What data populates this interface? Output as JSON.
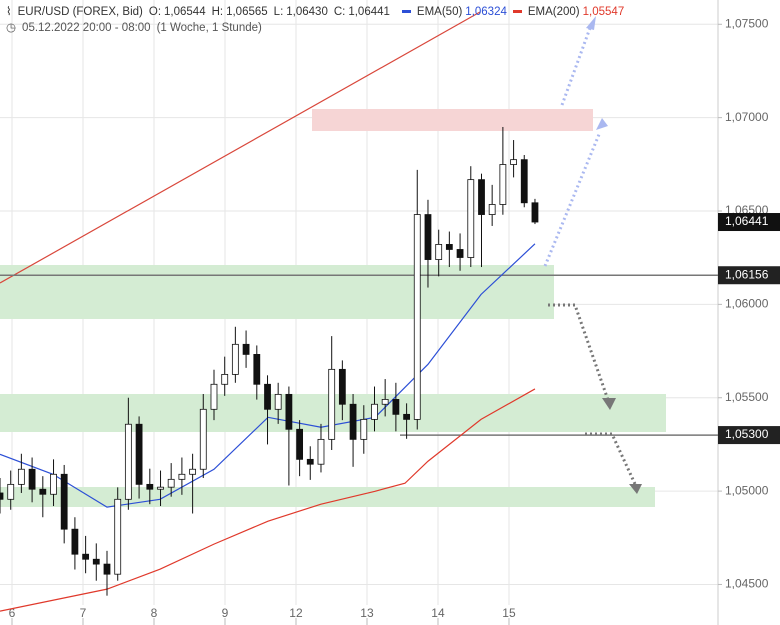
{
  "chart_data": {
    "type": "candlestick",
    "header": {
      "symbol": "EUR/USD (FOREX, Bid)",
      "ohlc": [
        {
          "label": "O:",
          "value": "1,06544"
        },
        {
          "label": "H:",
          "value": "1,06565"
        },
        {
          "label": "L:",
          "value": "1,06430"
        },
        {
          "label": "C:",
          "value": "1,06441"
        }
      ],
      "range": "05.12.2022 20:00 - 08:00",
      "period": "(1 Woche, 1 Stunde)"
    },
    "xlim": [
      -0.169,
      9.944
    ],
    "xticks": [
      {
        "value": 0,
        "label": "6"
      },
      {
        "value": 1,
        "label": "7"
      },
      {
        "value": 2,
        "label": "8"
      },
      {
        "value": 3,
        "label": "9"
      },
      {
        "value": 4,
        "label": "12"
      },
      {
        "value": 5,
        "label": "13"
      },
      {
        "value": 6,
        "label": "14"
      },
      {
        "value": 7,
        "label": "15"
      }
    ],
    "ylim": [
      1.0439,
      1.0763
    ],
    "yticks": [
      {
        "value": 1.045,
        "label": "1,04500"
      },
      {
        "value": 1.05,
        "label": "1,05000"
      },
      {
        "value": 1.055,
        "label": "1,05500"
      },
      {
        "value": 1.06,
        "label": "1,06000"
      },
      {
        "value": 1.065,
        "label": "1,06500"
      },
      {
        "value": 1.07,
        "label": "1,07000"
      },
      {
        "value": 1.075,
        "label": "1,07500"
      }
    ],
    "grid": true,
    "up_color": "#ffffff",
    "down_color": "#111111",
    "x": [
      -0.169,
      -0.018,
      0.132,
      0.283,
      0.434,
      0.585,
      0.735,
      0.886,
      1.037,
      1.187,
      1.338,
      1.489,
      1.639,
      1.79,
      1.941,
      2.092,
      2.242,
      2.393,
      2.544,
      2.694,
      2.845,
      2.996,
      3.146,
      3.297,
      3.448,
      3.599,
      3.749,
      3.9,
      4.051,
      4.201,
      4.352,
      4.503,
      4.653,
      4.804,
      4.955,
      5.106,
      5.256,
      5.407,
      5.558,
      5.708,
      5.859,
      6.01,
      6.16,
      6.311,
      6.462,
      6.613,
      6.763,
      6.914,
      7.065,
      7.215,
      7.366
    ],
    "open": [
      1.0499,
      1.04956,
      1.05036,
      1.05117,
      1.0501,
      1.04983,
      1.0509,
      1.04796,
      1.04662,
      1.04635,
      1.04609,
      1.04555,
      1.04956,
      1.05358,
      1.05036,
      1.0501,
      1.05021,
      1.05063,
      1.0509,
      1.05117,
      1.05438,
      1.05572,
      1.05625,
      1.05786,
      1.05732,
      1.05572,
      1.05438,
      1.05518,
      1.05331,
      1.0517,
      1.05144,
      1.05277,
      1.05652,
      1.05465,
      1.05277,
      1.05384,
      1.05465,
      1.05491,
      1.05411,
      1.05384,
      1.06481,
      1.0624,
      1.06321,
      1.06294,
      1.06251,
      1.06668,
      1.06481,
      1.06535,
      1.06749,
      1.06775,
      1.06544
    ],
    "high": [
      1.0507,
      1.0511,
      1.052,
      1.0518,
      1.0508,
      1.0517,
      1.0514,
      1.0486,
      1.0476,
      1.0472,
      1.0468,
      1.0502,
      1.055,
      1.054,
      1.0512,
      1.0511,
      1.0515,
      1.0518,
      1.052,
      1.0552,
      1.0565,
      1.0572,
      1.0588,
      1.0586,
      1.0578,
      1.0562,
      1.0558,
      1.0556,
      1.0538,
      1.0524,
      1.0536,
      1.0583,
      1.057,
      1.0552,
      1.0546,
      1.0556,
      1.056,
      1.0558,
      1.0547,
      1.0672,
      1.0656,
      1.064,
      1.0639,
      1.0638,
      1.0674,
      1.067,
      1.0664,
      1.0695,
      1.0688,
      1.068,
      1.06565
    ],
    "low": [
      1.0488,
      1.049,
      1.0499,
      1.0494,
      1.0486,
      1.0492,
      1.0472,
      1.0458,
      1.0456,
      1.0452,
      1.0444,
      1.0452,
      1.049,
      1.0496,
      1.0493,
      1.0492,
      1.0497,
      1.0498,
      1.0488,
      1.0507,
      1.0538,
      1.0551,
      1.0558,
      1.0566,
      1.0549,
      1.0525,
      1.0536,
      1.0503,
      1.0508,
      1.0506,
      1.051,
      1.0522,
      1.0538,
      1.0513,
      1.052,
      1.0532,
      1.054,
      1.0532,
      1.0528,
      1.0533,
      1.0609,
      1.0615,
      1.062,
      1.0618,
      1.062,
      1.062,
      1.0642,
      1.0648,
      1.0668,
      1.0652,
      1.0643
    ],
    "close": [
      1.04956,
      1.05036,
      1.05117,
      1.0501,
      1.04983,
      1.0509,
      1.04796,
      1.04662,
      1.04635,
      1.04609,
      1.04555,
      1.04956,
      1.05358,
      1.05036,
      1.0501,
      1.05021,
      1.05063,
      1.0509,
      1.05117,
      1.05438,
      1.05572,
      1.05625,
      1.05786,
      1.05732,
      1.05572,
      1.05438,
      1.05518,
      1.05331,
      1.0517,
      1.05144,
      1.05277,
      1.05652,
      1.05465,
      1.05277,
      1.05384,
      1.05465,
      1.05491,
      1.05411,
      1.05384,
      1.06481,
      1.0624,
      1.06321,
      1.06294,
      1.06251,
      1.06668,
      1.06481,
      1.06535,
      1.06749,
      1.06775,
      1.06544,
      1.06441
    ],
    "series": [
      {
        "name": "EMA(50)",
        "value_label": "1,06324",
        "color": "#2c4fd6",
        "x": [
          -0.169,
          0.577,
          1.338,
          2.085,
          2.845,
          3.606,
          4.352,
          5.113,
          5.859,
          6.606,
          7.366
        ],
        "values": [
          1.05197,
          1.0509,
          1.04914,
          1.04956,
          1.05117,
          1.05395,
          1.05342,
          1.05395,
          1.05679,
          1.06053,
          1.06324
        ]
      },
      {
        "name": "EMA(200)",
        "value_label": "1,05547",
        "color": "#e0392b",
        "x": [
          -0.169,
          1.338,
          2.085,
          2.845,
          3.606,
          4.352,
          5.113,
          5.535,
          5.859,
          6.606,
          7.366
        ],
        "values": [
          1.04357,
          1.04475,
          1.04582,
          1.04716,
          1.04839,
          1.0493,
          1.04999,
          1.05042,
          1.0516,
          1.05384,
          1.05547
        ]
      }
    ],
    "last_price": {
      "value": 1.06441,
      "label": "1,06441"
    },
    "levels": [
      {
        "value": 1.06156,
        "label": "1,06156",
        "from": -0.169
      },
      {
        "value": 1.053,
        "label": "1,05300",
        "from": 5.465
      }
    ]
  }
}
